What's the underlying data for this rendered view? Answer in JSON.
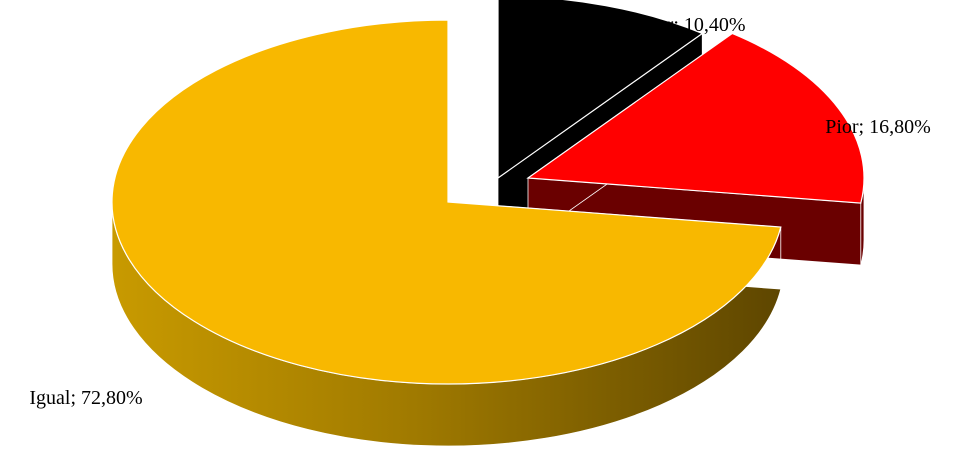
{
  "chart_data": {
    "type": "pie",
    "style": "3d-exploded",
    "title": "",
    "legend": "none",
    "slices": [
      {
        "category": "Melhor",
        "value": 10.4,
        "label": "Melhor; 10,40%",
        "color": "#000000",
        "side_color": "#000000"
      },
      {
        "category": "Pior",
        "value": 16.8,
        "label": "Pior; 16,80%",
        "color": "#ff0000",
        "side_color": "#6a0000"
      },
      {
        "category": "Igual",
        "value": 72.8,
        "label": "Igual; 72,80%",
        "color": "#f8b800",
        "side_color": "#8a6a00"
      }
    ]
  }
}
